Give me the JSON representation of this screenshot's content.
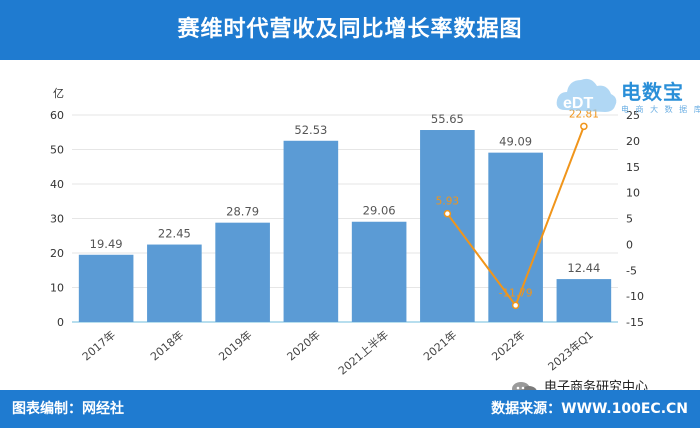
{
  "header": {
    "title": "赛维时代营收及同比增长率数据图"
  },
  "footer": {
    "left": "图表编制：网经社",
    "right": "数据来源：WWW.100EC.CN",
    "wechat": "电子商务研究中心"
  },
  "logo": {
    "text": "电数宝",
    "sub": "电 商 大 数 据 库",
    "mark": "eDT"
  },
  "colors": {
    "header": "#1f7bd0",
    "bar": "#5b9bd5",
    "line": "#f0951b",
    "text": "#555555"
  },
  "chart_data": {
    "type": "bar",
    "categories": [
      "2017年",
      "2018年",
      "2019年",
      "2020年",
      "2021上半年",
      "2021年",
      "2022年",
      "2023年Q1"
    ],
    "ylabel": "亿",
    "ylim": [
      0,
      60
    ],
    "yticks": [
      0,
      10,
      20,
      30,
      40,
      50,
      60
    ],
    "y2lim": [
      -15,
      25
    ],
    "y2ticks": [
      -15,
      -10,
      -5,
      0,
      5,
      10,
      15,
      20,
      25
    ],
    "grid": true,
    "series": [
      {
        "type": "bar",
        "axis": "left",
        "values": [
          19.49,
          22.45,
          28.79,
          52.53,
          29.06,
          55.65,
          49.09,
          12.44
        ]
      },
      {
        "type": "line",
        "axis": "right",
        "values": [
          null,
          null,
          null,
          null,
          null,
          5.93,
          -11.79,
          22.81
        ]
      }
    ],
    "line_labels": [
      "",
      "",
      "",
      "",
      "",
      "5.93",
      "-11.79",
      "22.81"
    ]
  }
}
